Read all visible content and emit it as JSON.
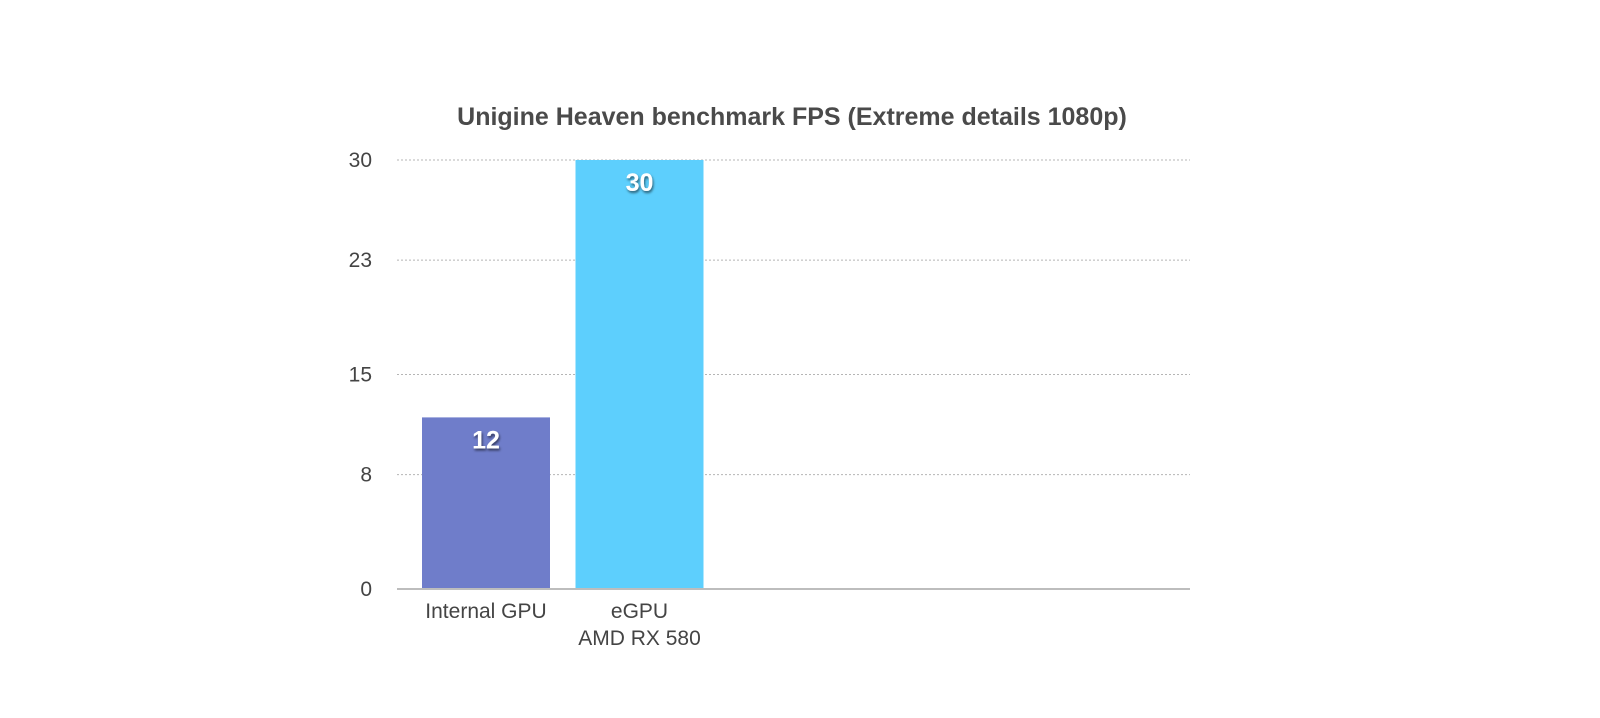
{
  "chart_data": {
    "type": "bar",
    "title": "Unigine Heaven benchmark FPS (Extreme details 1080p)",
    "xlabel": "",
    "ylabel": "",
    "categories": [
      [
        "Internal GPU"
      ],
      [
        "eGPU",
        "AMD RX 580"
      ]
    ],
    "values": [
      12,
      30
    ],
    "data_labels": [
      "12",
      "30"
    ],
    "colors": [
      "#6f7dca",
      "#5dcffd"
    ],
    "ylim": [
      0,
      30
    ],
    "y_ticks": [
      0,
      8,
      15,
      23,
      30
    ],
    "y_tick_labels": [
      "0",
      "8",
      "15",
      "23",
      "30"
    ],
    "grid": true,
    "legend": "none"
  }
}
